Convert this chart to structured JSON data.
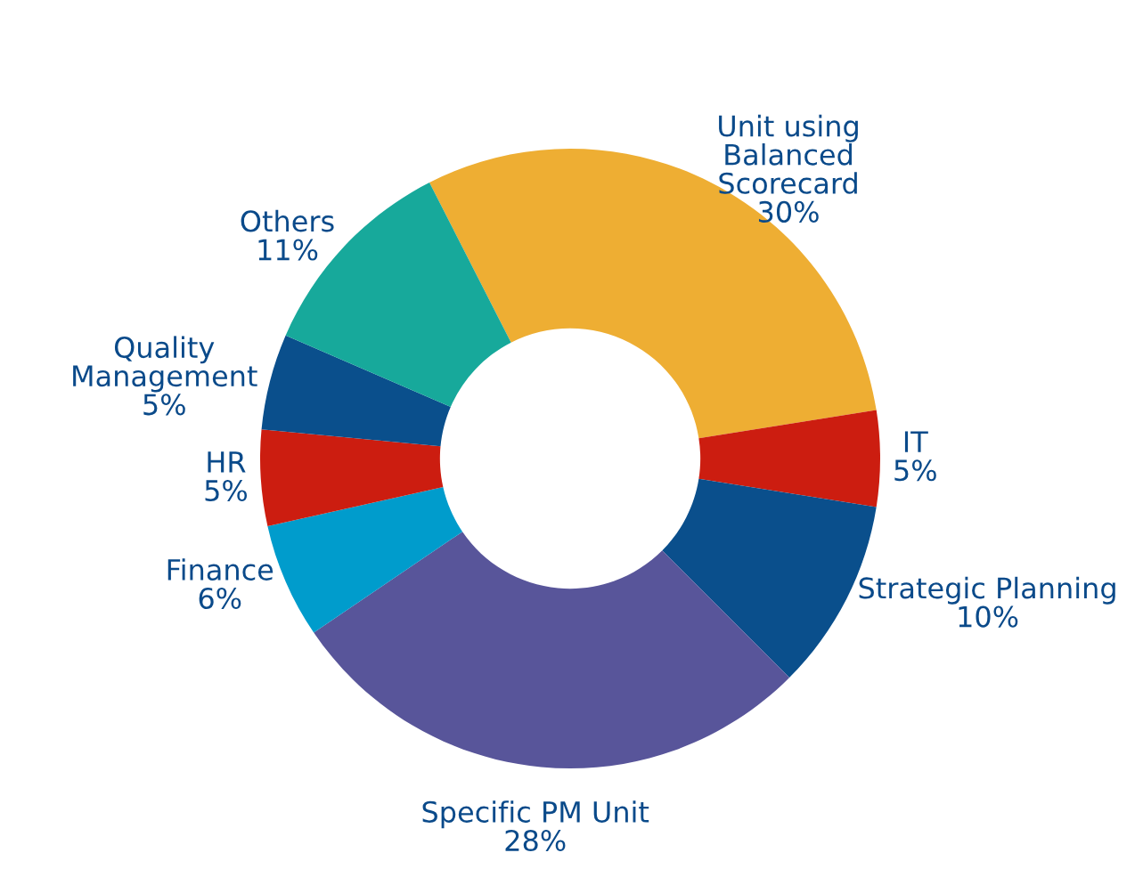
{
  "chart_data": {
    "type": "donut",
    "categories": [
      "Unit using\nBalanced\nScorecard",
      "IT",
      "Strategic Planning",
      "Specific PM Unit",
      "Finance",
      "HR",
      "Quality\nManagement",
      "Others"
    ],
    "values": [
      30,
      5,
      10,
      28,
      6,
      5,
      5,
      11
    ],
    "value_labels": [
      "30%",
      "5%",
      "10%",
      "28%",
      "6%",
      "5%",
      "5%",
      "11%"
    ],
    "colors": [
      "#eeae33",
      "#cc1d10",
      "#0a4f8c",
      "#58559a",
      "#009ccc",
      "#cc1d10",
      "#0a4f8c",
      "#17a99b"
    ],
    "legend": false
  }
}
